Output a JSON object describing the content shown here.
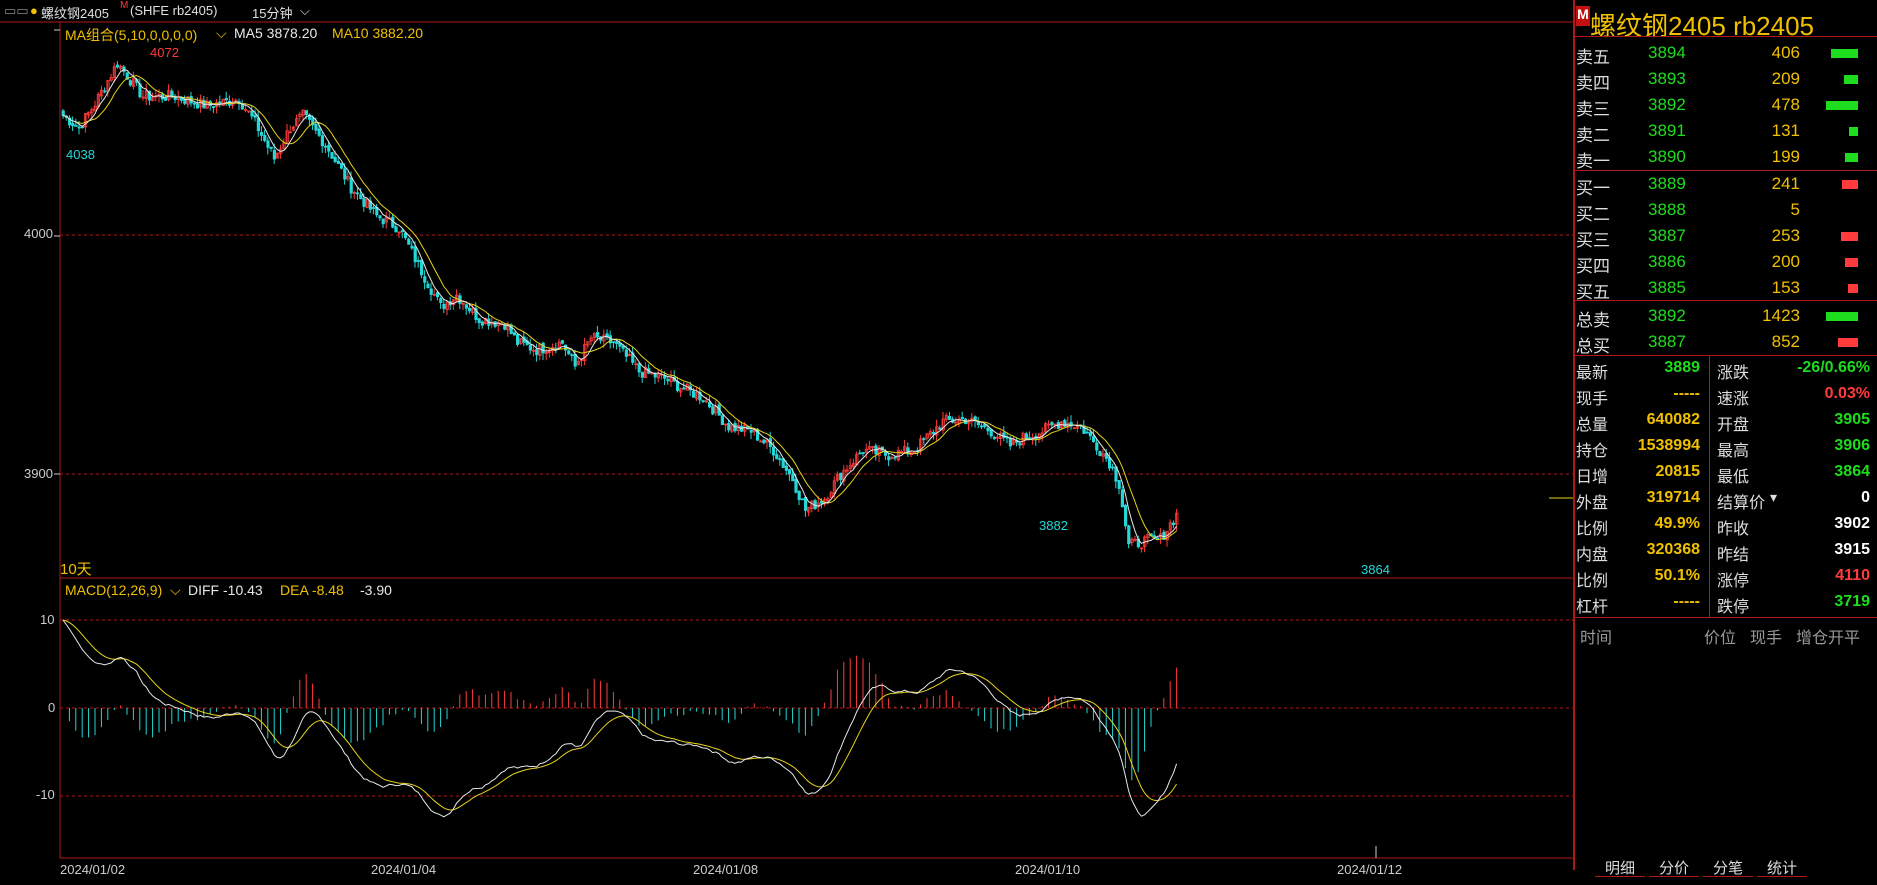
{
  "topbar": {
    "menu_icon": "menu-icon",
    "symbol": "螺纹钢2405",
    "mark": "M",
    "code": "(SHFE rb2405)",
    "period": "15分钟"
  },
  "main_chart": {
    "indicator": "MA组合(5,10,0,0,0,0)",
    "ma5": "MA5 3878.20",
    "ma10": "MA10 3882.20",
    "y_labels": [
      "4000",
      "3900"
    ],
    "period_label": "10天",
    "annotations": {
      "high_left": "4072",
      "low_left": "4038",
      "low_mid": "3882",
      "low_right": "3864"
    }
  },
  "macd_chart": {
    "indicator": "MACD(12,26,9)",
    "diff": "DIFF -10.43",
    "dea": "DEA -8.48",
    "macd": "-3.90",
    "y_labels": [
      "10",
      "0",
      "-10"
    ]
  },
  "x_axis": {
    "dates": [
      "2024/01/02",
      "2024/01/04",
      "2024/01/08",
      "2024/01/10",
      "2024/01/12"
    ]
  },
  "side": {
    "mark": "M",
    "title": "螺纹钢2405  rb2405",
    "asks": [
      {
        "name": "卖五",
        "price": "3894",
        "vol": "406"
      },
      {
        "name": "卖四",
        "price": "3893",
        "vol": "209"
      },
      {
        "name": "卖三",
        "price": "3892",
        "vol": "478"
      },
      {
        "name": "卖二",
        "price": "3891",
        "vol": "131"
      },
      {
        "name": "卖一",
        "price": "3890",
        "vol": "199"
      }
    ],
    "bids": [
      {
        "name": "买一",
        "price": "3889",
        "vol": "241"
      },
      {
        "name": "买二",
        "price": "3888",
        "vol": "5"
      },
      {
        "name": "买三",
        "price": "3887",
        "vol": "253"
      },
      {
        "name": "买四",
        "price": "3886",
        "vol": "200"
      },
      {
        "name": "买五",
        "price": "3885",
        "vol": "153"
      }
    ],
    "totals": [
      {
        "name": "总卖",
        "price": "3892",
        "vol": "1423"
      },
      {
        "name": "总买",
        "price": "3887",
        "vol": "852"
      }
    ],
    "stats": [
      {
        "k1": "最新",
        "v1": "3889",
        "k2": "涨跌",
        "v2": "-26/0.66%"
      },
      {
        "k1": "现手",
        "v1": "-----",
        "k2": "速涨",
        "v2": "0.03%"
      },
      {
        "k1": "总量",
        "v1": "640082",
        "k2": "开盘",
        "v2": "3905"
      },
      {
        "k1": "持仓",
        "v1": "1538994",
        "k2": "最高",
        "v2": "3906"
      },
      {
        "k1": "日增",
        "v1": "20815",
        "k2": "最低",
        "v2": "3864"
      },
      {
        "k1": "外盘",
        "v1": "319714",
        "k2": "结算价",
        "v2": "0"
      },
      {
        "k1": "比例",
        "v1": "49.9%",
        "k2": "昨收",
        "v2": "3902"
      },
      {
        "k1": "内盘",
        "v1": "320368",
        "k2": "昨结",
        "v2": "3915"
      },
      {
        "k1": "比例",
        "v1": "50.1%",
        "k2": "涨停",
        "v2": "4110"
      },
      {
        "k1": "杠杆",
        "v1": "-----",
        "k2": "跌停",
        "v2": "3719"
      }
    ],
    "tick_header": [
      "时间",
      "价位",
      "现手",
      "增仓",
      "开平"
    ],
    "tabs": [
      "明细",
      "分价",
      "分笔",
      "统计"
    ]
  },
  "colors": {
    "up": "#ff3b3b",
    "down": "#25d7d7",
    "ma5": "#e8e8e8",
    "ma10": "#e6d31a",
    "green": "#1edc1e",
    "yellow": "#f0c000",
    "grid": "#b01818"
  }
}
